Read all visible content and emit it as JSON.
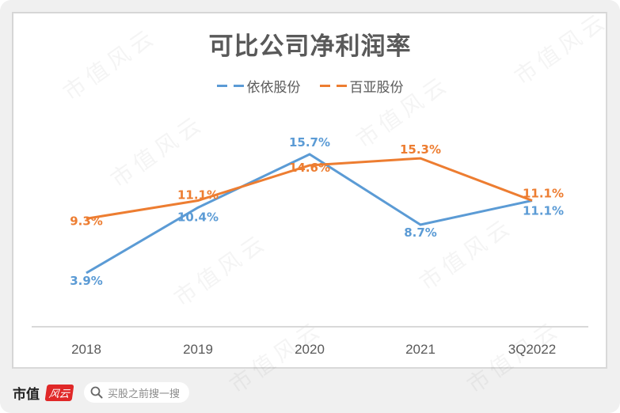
{
  "chart_data": {
    "type": "line",
    "title": "可比公司净利润率",
    "categories": [
      "2018",
      "2019",
      "2020",
      "2021",
      "3Q2022"
    ],
    "series": [
      {
        "name": "依依股份",
        "color": "#5b9bd5",
        "values": [
          3.9,
          10.4,
          15.7,
          8.7,
          11.1
        ],
        "labels": [
          "3.9%",
          "10.4%",
          "15.7%",
          "8.7%",
          "11.1%"
        ]
      },
      {
        "name": "百亚股份",
        "color": "#ed7d31",
        "values": [
          9.3,
          11.1,
          14.6,
          15.3,
          11.1
        ],
        "labels": [
          "9.3%",
          "11.1%",
          "14.6%",
          "15.3%",
          "11.1%"
        ]
      }
    ],
    "xlabel": "",
    "ylabel": "",
    "unit": "%",
    "grid": false,
    "legend_position": "top",
    "line_style": "solid (legend shown dashed)"
  },
  "footer": {
    "brand": "市值",
    "brand_badge": "风云",
    "search_placeholder": "买股之前搜一搜"
  },
  "watermark": "市值风云"
}
